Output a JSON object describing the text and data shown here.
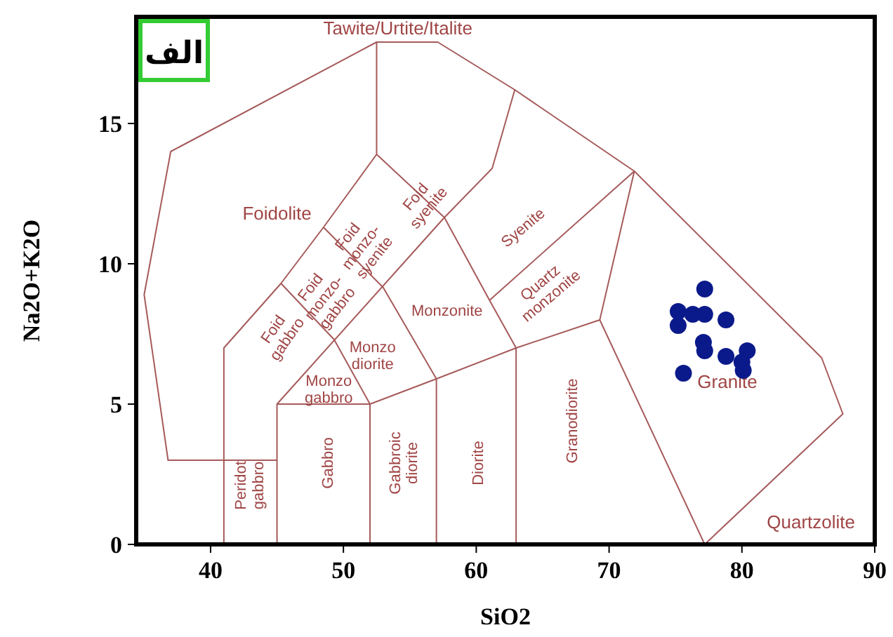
{
  "chart_data": {
    "type": "scatter",
    "xlabel": "SiO2",
    "ylabel": "Na2O+K2O",
    "xlim": [
      34.4,
      90
    ],
    "ylim": [
      0,
      18.8
    ],
    "xticks": [
      40,
      50,
      60,
      70,
      80,
      90
    ],
    "yticks": [
      0,
      5,
      10,
      15
    ],
    "grid": false,
    "series": [
      {
        "type": "scatter",
        "color": "#0b1a8a",
        "marker": "circle",
        "x": [
          77.2,
          75.2,
          75.2,
          76.3,
          77.2,
          78.8,
          77.1,
          77.2,
          78.8,
          80.4,
          80.0,
          80.1,
          75.6
        ],
        "values": [
          9.1,
          8.3,
          7.8,
          8.2,
          8.2,
          8.0,
          7.2,
          6.9,
          6.7,
          6.9,
          6.5,
          6.2,
          6.1
        ]
      },
      {
        "type": "line",
        "color": "#a65a5a",
        "line_style": "solid",
        "marker": "none",
        "x": [
          45,
          36.8,
          35,
          37,
          52.5,
          57.1,
          62.9,
          71.9,
          86,
          87.6,
          77.2,
          null,
          41,
          41,
          45.3,
          48.5,
          52.5,
          52.5,
          null,
          52.5,
          57.6,
          61,
          63,
          69.3,
          77.2,
          null,
          57.6,
          61.2,
          62.9,
          null,
          61,
          71.9,
          69.3,
          null,
          45,
          45,
          52,
          57,
          63,
          null,
          45,
          57.6,
          null,
          45.3,
          49.3,
          52,
          52,
          null,
          48.5,
          53,
          57,
          57,
          null,
          63,
          63
        ],
        "values": [
          3,
          3,
          8.9,
          14,
          17.9,
          17.9,
          16.2,
          13.3,
          6.65,
          4.65,
          0,
          null,
          0,
          7,
          9.3,
          11.3,
          13.9,
          17.9,
          null,
          13.9,
          11.65,
          8.7,
          7,
          8,
          0,
          null,
          11.65,
          13.4,
          16.2,
          null,
          8.7,
          13.3,
          8,
          null,
          0,
          5,
          5,
          5.9,
          7,
          null,
          5,
          11.65,
          null,
          9.3,
          7.3,
          5,
          0,
          null,
          11.3,
          9.15,
          5.9,
          0,
          null,
          0,
          7
        ]
      }
    ],
    "annotations": [
      "الف",
      "Tawite/Urtite/Italite",
      "Foidolite",
      "Foid syenite",
      "Foid monzo- syenite",
      "Foid monzo- gabbro",
      "Foid gabbro",
      "Monzo diorite",
      "Monzo gabbro",
      "Monzonite",
      "Syenite",
      "Quartz monzonite",
      "Granite",
      "Quartzolite",
      "Peridot gabbro",
      "Gabbro",
      "Gabbroic diorite",
      "Diorite",
      "Granodiorite"
    ]
  }
}
